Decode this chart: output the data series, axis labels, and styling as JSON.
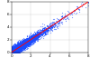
{
  "title": "",
  "xlim": [
    0,
    8
  ],
  "ylim": [
    0,
    8
  ],
  "xticks": [
    0,
    2,
    4,
    6,
    8
  ],
  "yticks": [
    0,
    2,
    4,
    6,
    8
  ],
  "scatter_color": "#1a4aff",
  "line_color": "#ff0000",
  "n_points": 5000,
  "seed": 42,
  "background_color": "#ffffff",
  "grid_color": "#bbbbbb",
  "dot_size": 0.8,
  "dot_alpha": 0.55,
  "line_x": [
    0,
    8
  ],
  "line_y": [
    0,
    8
  ],
  "tick_labelsize": 3.0,
  "linewidth": 0.7
}
